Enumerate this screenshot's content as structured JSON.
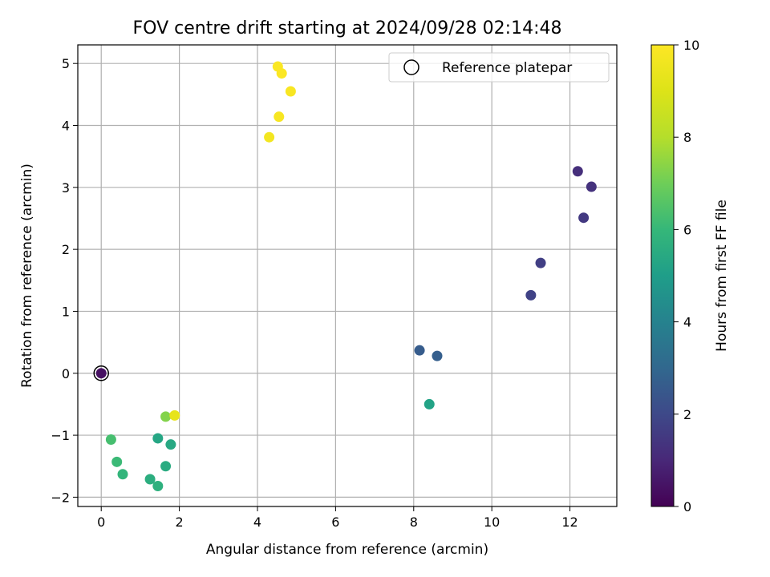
{
  "chart_data": {
    "type": "scatter",
    "title": "FOV centre drift starting at 2024/09/28 02:14:48",
    "xlabel": "Angular distance from reference (arcmin)",
    "ylabel": "Rotation from reference (arcmin)",
    "xlim": [
      -0.6,
      13.2
    ],
    "ylim": [
      -2.15,
      5.3
    ],
    "xticks": [
      0,
      2,
      4,
      6,
      8,
      10,
      12
    ],
    "yticks": [
      -2,
      -1,
      0,
      1,
      2,
      3,
      4,
      5
    ],
    "grid": true,
    "colormap": "viridis",
    "colorbar": {
      "label": "Hours from first FF file",
      "range": [
        0,
        10
      ],
      "ticks": [
        0,
        2,
        4,
        6,
        8,
        10
      ]
    },
    "legend": {
      "position": "top-right",
      "entries": [
        "Reference platepar"
      ]
    },
    "reference_point": {
      "x": 0,
      "y": 0
    },
    "points": [
      {
        "x": 0.0,
        "y": 0.0,
        "hours": 0.4
      },
      {
        "x": 12.2,
        "y": 3.26,
        "hours": 1.2
      },
      {
        "x": 12.55,
        "y": 3.01,
        "hours": 1.3
      },
      {
        "x": 12.35,
        "y": 2.51,
        "hours": 1.5
      },
      {
        "x": 11.25,
        "y": 1.78,
        "hours": 1.7
      },
      {
        "x": 11.0,
        "y": 1.26,
        "hours": 1.8
      },
      {
        "x": 8.15,
        "y": 0.37,
        "hours": 2.6
      },
      {
        "x": 8.6,
        "y": 0.28,
        "hours": 2.7
      },
      {
        "x": 8.4,
        "y": -0.5,
        "hours": 5.2
      },
      {
        "x": 1.45,
        "y": -1.05,
        "hours": 5.3
      },
      {
        "x": 1.78,
        "y": -1.15,
        "hours": 5.4
      },
      {
        "x": 1.65,
        "y": -1.5,
        "hours": 5.5
      },
      {
        "x": 1.25,
        "y": -1.71,
        "hours": 5.6
      },
      {
        "x": 1.45,
        "y": -1.82,
        "hours": 5.7
      },
      {
        "x": 0.55,
        "y": -1.63,
        "hours": 5.9
      },
      {
        "x": 0.4,
        "y": -1.43,
        "hours": 6.1
      },
      {
        "x": 0.25,
        "y": -1.07,
        "hours": 6.3
      },
      {
        "x": 1.65,
        "y": -0.7,
        "hours": 7.3
      },
      {
        "x": 1.88,
        "y": -0.68,
        "hours": 9.3
      },
      {
        "x": 4.3,
        "y": 3.81,
        "hours": 9.7
      },
      {
        "x": 4.55,
        "y": 4.14,
        "hours": 9.8
      },
      {
        "x": 4.85,
        "y": 4.55,
        "hours": 9.85
      },
      {
        "x": 4.52,
        "y": 4.95,
        "hours": 9.9
      },
      {
        "x": 4.62,
        "y": 4.84,
        "hours": 9.95
      }
    ]
  }
}
